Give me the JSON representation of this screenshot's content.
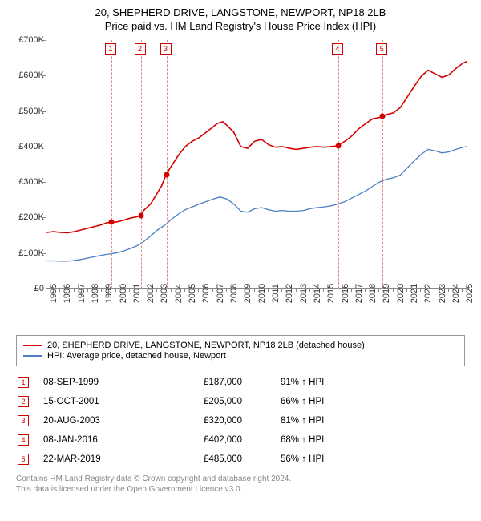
{
  "title": {
    "line1": "20, SHEPHERD DRIVE, LANGSTONE, NEWPORT, NP18 2LB",
    "line2": "Price paid vs. HM Land Registry's House Price Index (HPI)"
  },
  "chart": {
    "type": "line",
    "background_color": "#ffffff",
    "axis_color": "#888888",
    "x": {
      "min": 1995,
      "max": 2025.5,
      "ticks": [
        1995,
        1996,
        1997,
        1998,
        1999,
        2000,
        2001,
        2002,
        2003,
        2004,
        2005,
        2006,
        2007,
        2008,
        2009,
        2010,
        2011,
        2012,
        2013,
        2014,
        2015,
        2016,
        2017,
        2018,
        2019,
        2020,
        2021,
        2022,
        2023,
        2024,
        2025
      ],
      "tick_fontsize": 11,
      "tick_rotation": -90
    },
    "y": {
      "min": 0,
      "max": 700000,
      "ticks": [
        0,
        100000,
        200000,
        300000,
        400000,
        500000,
        600000,
        700000
      ],
      "tick_labels": [
        "£0",
        "£100K",
        "£200K",
        "£300K",
        "£400K",
        "£500K",
        "£600K",
        "£700K"
      ],
      "tick_fontsize": 11
    },
    "series": [
      {
        "name": "property",
        "label": "20, SHEPHERD DRIVE, LANGSTONE, NEWPORT, NP18 2LB (detached house)",
        "color": "#d40000",
        "line_width": 1.6,
        "points": [
          [
            1995.0,
            158000
          ],
          [
            1995.5,
            160000
          ],
          [
            1996.0,
            158000
          ],
          [
            1996.5,
            157000
          ],
          [
            1997.0,
            160000
          ],
          [
            1997.5,
            165000
          ],
          [
            1998.0,
            170000
          ],
          [
            1998.5,
            175000
          ],
          [
            1999.0,
            180000
          ],
          [
            1999.3,
            185000
          ],
          [
            1999.7,
            187000
          ],
          [
            2000.0,
            187000
          ],
          [
            2000.5,
            192000
          ],
          [
            2001.0,
            198000
          ],
          [
            2001.5,
            202000
          ],
          [
            2001.8,
            205000
          ],
          [
            2002.0,
            220000
          ],
          [
            2002.5,
            238000
          ],
          [
            2003.0,
            270000
          ],
          [
            2003.3,
            290000
          ],
          [
            2003.6,
            320000
          ],
          [
            2004.0,
            345000
          ],
          [
            2004.5,
            375000
          ],
          [
            2005.0,
            400000
          ],
          [
            2005.5,
            415000
          ],
          [
            2006.0,
            425000
          ],
          [
            2006.5,
            440000
          ],
          [
            2007.0,
            455000
          ],
          [
            2007.3,
            465000
          ],
          [
            2007.7,
            470000
          ],
          [
            2008.0,
            460000
          ],
          [
            2008.5,
            440000
          ],
          [
            2009.0,
            400000
          ],
          [
            2009.5,
            395000
          ],
          [
            2010.0,
            415000
          ],
          [
            2010.5,
            420000
          ],
          [
            2011.0,
            405000
          ],
          [
            2011.5,
            398000
          ],
          [
            2012.0,
            400000
          ],
          [
            2012.5,
            395000
          ],
          [
            2013.0,
            392000
          ],
          [
            2013.5,
            395000
          ],
          [
            2014.0,
            398000
          ],
          [
            2014.5,
            400000
          ],
          [
            2015.0,
            398000
          ],
          [
            2015.5,
            400000
          ],
          [
            2016.0,
            402000
          ],
          [
            2016.5,
            415000
          ],
          [
            2017.0,
            430000
          ],
          [
            2017.5,
            450000
          ],
          [
            2018.0,
            465000
          ],
          [
            2018.5,
            478000
          ],
          [
            2019.0,
            482000
          ],
          [
            2019.2,
            485000
          ],
          [
            2019.5,
            490000
          ],
          [
            2020.0,
            495000
          ],
          [
            2020.5,
            510000
          ],
          [
            2021.0,
            540000
          ],
          [
            2021.5,
            570000
          ],
          [
            2022.0,
            598000
          ],
          [
            2022.5,
            615000
          ],
          [
            2023.0,
            605000
          ],
          [
            2023.5,
            595000
          ],
          [
            2024.0,
            602000
          ],
          [
            2024.5,
            620000
          ],
          [
            2025.0,
            635000
          ],
          [
            2025.3,
            640000
          ]
        ]
      },
      {
        "name": "hpi",
        "label": "HPI: Average price, detached house, Newport",
        "color": "#4a7fc4",
        "line_width": 1.3,
        "points": [
          [
            1995.0,
            78000
          ],
          [
            1995.5,
            78000
          ],
          [
            1996.0,
            77000
          ],
          [
            1996.5,
            77000
          ],
          [
            1997.0,
            79000
          ],
          [
            1997.5,
            82000
          ],
          [
            1998.0,
            86000
          ],
          [
            1998.5,
            90000
          ],
          [
            1999.0,
            94000
          ],
          [
            1999.5,
            97000
          ],
          [
            2000.0,
            100000
          ],
          [
            2000.5,
            105000
          ],
          [
            2001.0,
            112000
          ],
          [
            2001.5,
            120000
          ],
          [
            2002.0,
            132000
          ],
          [
            2002.5,
            148000
          ],
          [
            2003.0,
            165000
          ],
          [
            2003.5,
            178000
          ],
          [
            2004.0,
            195000
          ],
          [
            2004.5,
            210000
          ],
          [
            2005.0,
            222000
          ],
          [
            2005.5,
            230000
          ],
          [
            2006.0,
            238000
          ],
          [
            2006.5,
            245000
          ],
          [
            2007.0,
            252000
          ],
          [
            2007.5,
            258000
          ],
          [
            2008.0,
            252000
          ],
          [
            2008.5,
            238000
          ],
          [
            2009.0,
            218000
          ],
          [
            2009.5,
            215000
          ],
          [
            2010.0,
            225000
          ],
          [
            2010.5,
            228000
          ],
          [
            2011.0,
            222000
          ],
          [
            2011.5,
            218000
          ],
          [
            2012.0,
            220000
          ],
          [
            2012.5,
            218000
          ],
          [
            2013.0,
            218000
          ],
          [
            2013.5,
            220000
          ],
          [
            2014.0,
            225000
          ],
          [
            2014.5,
            228000
          ],
          [
            2015.0,
            230000
          ],
          [
            2015.5,
            233000
          ],
          [
            2016.0,
            238000
          ],
          [
            2016.5,
            245000
          ],
          [
            2017.0,
            255000
          ],
          [
            2017.5,
            265000
          ],
          [
            2018.0,
            275000
          ],
          [
            2018.5,
            288000
          ],
          [
            2019.0,
            300000
          ],
          [
            2019.5,
            308000
          ],
          [
            2020.0,
            312000
          ],
          [
            2020.5,
            320000
          ],
          [
            2021.0,
            340000
          ],
          [
            2021.5,
            360000
          ],
          [
            2022.0,
            378000
          ],
          [
            2022.5,
            392000
          ],
          [
            2023.0,
            388000
          ],
          [
            2023.5,
            382000
          ],
          [
            2024.0,
            385000
          ],
          [
            2024.5,
            392000
          ],
          [
            2025.0,
            398000
          ],
          [
            2025.3,
            400000
          ]
        ]
      }
    ],
    "sale_markers": [
      {
        "n": "1",
        "year": 1999.68,
        "price": 187000,
        "marker_top": true
      },
      {
        "n": "2",
        "year": 2001.79,
        "price": 205000,
        "marker_top": true
      },
      {
        "n": "3",
        "year": 2003.64,
        "price": 320000,
        "marker_top": true
      },
      {
        "n": "4",
        "year": 2016.02,
        "price": 402000,
        "marker_top": true
      },
      {
        "n": "5",
        "year": 2019.22,
        "price": 485000,
        "marker_top": true
      }
    ],
    "marker_style": {
      "box_border": "#d40000",
      "box_text": "#d40000",
      "box_bg": "#ffffff",
      "vline_color": "#e88888",
      "dot_color": "#d40000",
      "dot_radius": 3.5
    }
  },
  "legend": {
    "border_color": "#999999",
    "fontsize": 11
  },
  "sales": [
    {
      "n": "1",
      "date": "08-SEP-1999",
      "price": "£187,000",
      "pct": "91% ↑ HPI"
    },
    {
      "n": "2",
      "date": "15-OCT-2001",
      "price": "£205,000",
      "pct": "66% ↑ HPI"
    },
    {
      "n": "3",
      "date": "20-AUG-2003",
      "price": "£320,000",
      "pct": "81% ↑ HPI"
    },
    {
      "n": "4",
      "date": "08-JAN-2016",
      "price": "£402,000",
      "pct": "68% ↑ HPI"
    },
    {
      "n": "5",
      "date": "22-MAR-2019",
      "price": "£485,000",
      "pct": "56% ↑ HPI"
    }
  ],
  "footer": {
    "line1": "Contains HM Land Registry data © Crown copyright and database right 2024.",
    "line2": "This data is licensed under the Open Government Licence v3.0."
  }
}
